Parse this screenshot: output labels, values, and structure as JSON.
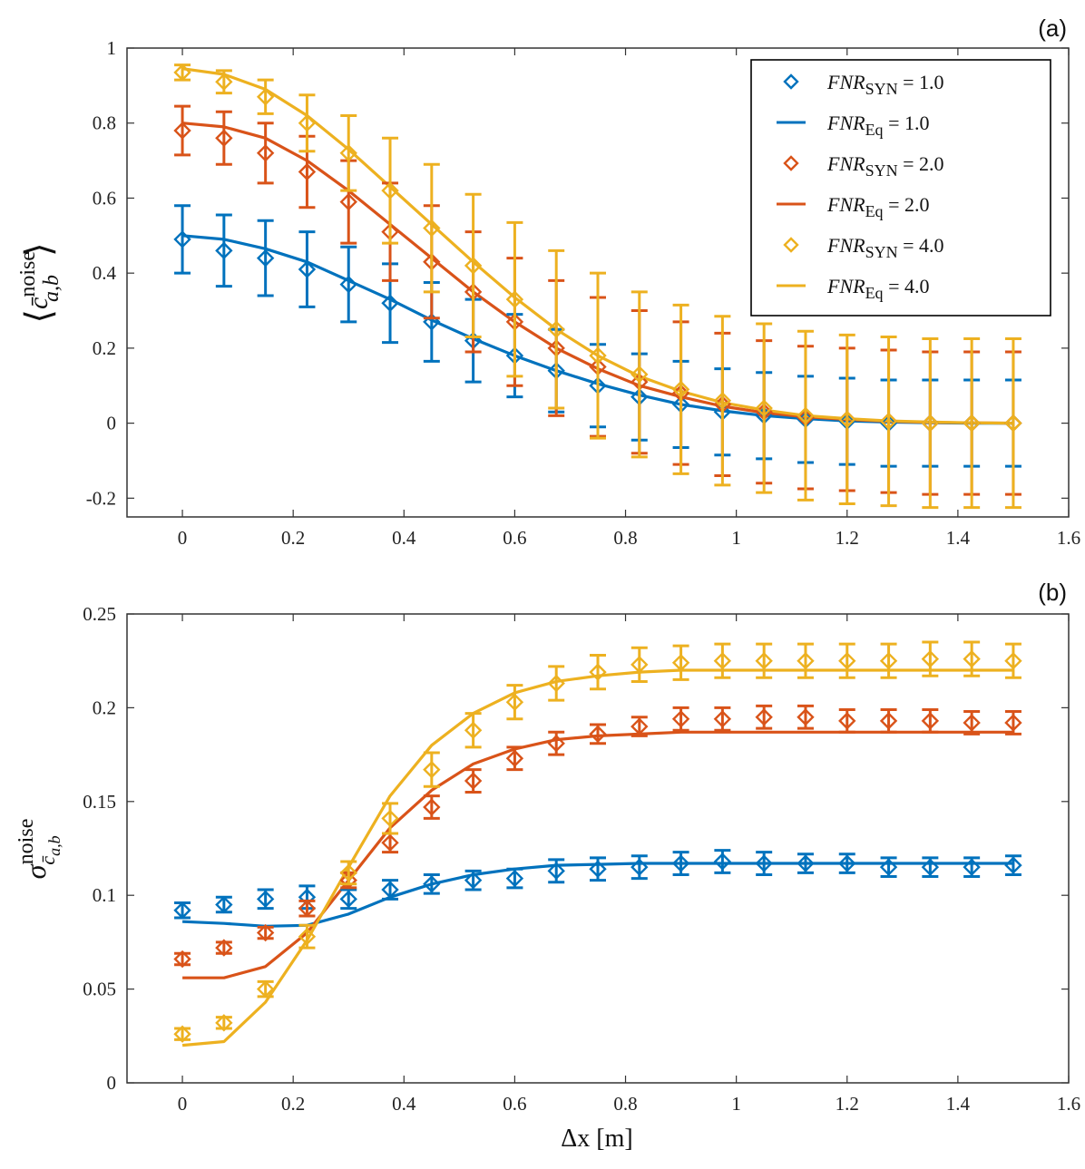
{
  "chart_data": [
    {
      "type": "line",
      "panel_label": "(a)",
      "ylabel_parts": {
        "open": "⟨",
        "var": "c̄",
        "sup": "noise",
        "sub": "a,b",
        "close": "⟩"
      },
      "xlim": [
        -0.1,
        1.6
      ],
      "ylim": [
        -0.25,
        1.0
      ],
      "xticks": [
        0,
        0.2,
        0.4,
        0.6,
        0.8,
        1.0,
        1.2,
        1.4,
        1.6
      ],
      "xtick_labels": [
        "0",
        "0.2",
        "0.4",
        "0.6",
        "0.8",
        "1",
        "1.2",
        "1.4",
        "1.6"
      ],
      "yticks": [
        -0.2,
        0,
        0.2,
        0.4,
        0.6,
        0.8,
        1.0
      ],
      "ytick_labels": [
        "-0.2",
        "0",
        "0.2",
        "0.4",
        "0.6",
        "0.8",
        "1"
      ],
      "legend_position": "top-right",
      "x": [
        0,
        0.075,
        0.15,
        0.225,
        0.3,
        0.375,
        0.45,
        0.525,
        0.6,
        0.675,
        0.75,
        0.825,
        0.9,
        0.975,
        1.05,
        1.125,
        1.2,
        1.275,
        1.35,
        1.425,
        1.5
      ],
      "series": [
        {
          "name": "FNR_SYN = 1.0",
          "legend": {
            "var": "FNR",
            "sub": "SYN",
            "rest": " = 1.0"
          },
          "kind": "markers",
          "color": "#0072BD",
          "values": [
            0.49,
            0.46,
            0.44,
            0.41,
            0.37,
            0.32,
            0.27,
            0.22,
            0.18,
            0.14,
            0.1,
            0.07,
            0.05,
            0.03,
            0.02,
            0.01,
            0.005,
            0.0,
            0.0,
            0.0,
            0.0
          ],
          "err": [
            0.09,
            0.095,
            0.1,
            0.1,
            0.1,
            0.105,
            0.105,
            0.11,
            0.11,
            0.11,
            0.11,
            0.115,
            0.115,
            0.115,
            0.115,
            0.115,
            0.115,
            0.115,
            0.115,
            0.115,
            0.115
          ]
        },
        {
          "name": "FNR_Eq = 1.0",
          "legend": {
            "var": "FNR",
            "sub": "Eq",
            "rest": " = 1.0"
          },
          "kind": "line",
          "color": "#0072BD",
          "values": [
            0.5,
            0.49,
            0.465,
            0.43,
            0.38,
            0.33,
            0.275,
            0.225,
            0.18,
            0.14,
            0.105,
            0.075,
            0.05,
            0.033,
            0.02,
            0.012,
            0.006,
            0.003,
            0.001,
            0.0,
            0.0
          ]
        },
        {
          "name": "FNR_SYN = 2.0",
          "legend": {
            "var": "FNR",
            "sub": "SYN",
            "rest": " = 2.0"
          },
          "kind": "markers",
          "color": "#D95319",
          "values": [
            0.78,
            0.76,
            0.72,
            0.67,
            0.59,
            0.51,
            0.43,
            0.35,
            0.27,
            0.2,
            0.15,
            0.11,
            0.08,
            0.05,
            0.03,
            0.015,
            0.01,
            0.005,
            0.0,
            0.0,
            0.0
          ],
          "err": [
            0.065,
            0.07,
            0.08,
            0.095,
            0.11,
            0.13,
            0.15,
            0.16,
            0.17,
            0.18,
            0.185,
            0.19,
            0.19,
            0.19,
            0.19,
            0.19,
            0.19,
            0.19,
            0.19,
            0.19,
            0.19
          ]
        },
        {
          "name": "FNR_Eq = 2.0",
          "legend": {
            "var": "FNR",
            "sub": "Eq",
            "rest": " = 2.0"
          },
          "kind": "line",
          "color": "#D95319",
          "values": [
            0.8,
            0.79,
            0.76,
            0.7,
            0.62,
            0.53,
            0.44,
            0.35,
            0.27,
            0.2,
            0.145,
            0.1,
            0.07,
            0.045,
            0.028,
            0.017,
            0.01,
            0.005,
            0.002,
            0.001,
            0.0
          ]
        },
        {
          "name": "FNR_SYN = 4.0",
          "legend": {
            "var": "FNR",
            "sub": "SYN",
            "rest": " = 4.0"
          },
          "kind": "markers",
          "color": "#EDB120",
          "values": [
            0.935,
            0.91,
            0.87,
            0.8,
            0.72,
            0.62,
            0.52,
            0.42,
            0.33,
            0.25,
            0.18,
            0.13,
            0.09,
            0.06,
            0.04,
            0.02,
            0.01,
            0.005,
            0.0,
            0.0,
            0.0
          ],
          "err": [
            0.02,
            0.03,
            0.045,
            0.075,
            0.1,
            0.14,
            0.17,
            0.19,
            0.205,
            0.21,
            0.22,
            0.22,
            0.225,
            0.225,
            0.225,
            0.225,
            0.225,
            0.225,
            0.225,
            0.225,
            0.225
          ]
        },
        {
          "name": "FNR_Eq = 4.0",
          "legend": {
            "var": "FNR",
            "sub": "Eq",
            "rest": " = 4.0"
          },
          "kind": "line",
          "color": "#EDB120",
          "values": [
            0.945,
            0.93,
            0.89,
            0.82,
            0.73,
            0.63,
            0.53,
            0.43,
            0.335,
            0.25,
            0.18,
            0.125,
            0.085,
            0.055,
            0.035,
            0.02,
            0.012,
            0.006,
            0.003,
            0.001,
            0.0
          ]
        }
      ]
    },
    {
      "type": "line",
      "panel_label": "(b)",
      "ylabel_parts": {
        "sigma": "σ",
        "sub": "c̄",
        "sub2": "a,b",
        "sup": "noise"
      },
      "xlabel": "Δx [m]",
      "xlim": [
        -0.1,
        1.6
      ],
      "ylim": [
        0,
        0.25
      ],
      "xticks": [
        0,
        0.2,
        0.4,
        0.6,
        0.8,
        1.0,
        1.2,
        1.4,
        1.6
      ],
      "xtick_labels": [
        "0",
        "0.2",
        "0.4",
        "0.6",
        "0.8",
        "1",
        "1.2",
        "1.4",
        "1.6"
      ],
      "yticks": [
        0,
        0.05,
        0.1,
        0.15,
        0.2,
        0.25
      ],
      "ytick_labels": [
        "0",
        "0.05",
        "0.1",
        "0.15",
        "0.2",
        "0.25"
      ],
      "x": [
        0,
        0.075,
        0.15,
        0.225,
        0.3,
        0.375,
        0.45,
        0.525,
        0.6,
        0.675,
        0.75,
        0.825,
        0.9,
        0.975,
        1.05,
        1.125,
        1.2,
        1.275,
        1.35,
        1.425,
        1.5
      ],
      "series": [
        {
          "name": "FNR_SYN = 1.0",
          "kind": "markers",
          "color": "#0072BD",
          "values": [
            0.092,
            0.095,
            0.098,
            0.099,
            0.098,
            0.103,
            0.106,
            0.108,
            0.109,
            0.113,
            0.114,
            0.115,
            0.117,
            0.118,
            0.117,
            0.117,
            0.117,
            0.115,
            0.115,
            0.115,
            0.116
          ],
          "err": [
            0.004,
            0.004,
            0.005,
            0.006,
            0.005,
            0.005,
            0.005,
            0.005,
            0.005,
            0.006,
            0.006,
            0.006,
            0.006,
            0.006,
            0.006,
            0.005,
            0.005,
            0.005,
            0.005,
            0.005,
            0.005
          ]
        },
        {
          "name": "FNR_Eq = 1.0",
          "kind": "line",
          "color": "#0072BD",
          "values": [
            0.086,
            0.085,
            0.0835,
            0.084,
            0.09,
            0.099,
            0.106,
            0.111,
            0.114,
            0.116,
            0.1165,
            0.117,
            0.117,
            0.117,
            0.117,
            0.117,
            0.117,
            0.117,
            0.117,
            0.117,
            0.117
          ]
        },
        {
          "name": "FNR_SYN = 2.0",
          "kind": "markers",
          "color": "#D95319",
          "values": [
            0.066,
            0.072,
            0.08,
            0.093,
            0.108,
            0.128,
            0.147,
            0.161,
            0.173,
            0.181,
            0.186,
            0.19,
            0.194,
            0.194,
            0.195,
            0.195,
            0.193,
            0.193,
            0.193,
            0.192,
            0.192
          ],
          "err": [
            0.003,
            0.003,
            0.003,
            0.004,
            0.004,
            0.005,
            0.006,
            0.006,
            0.006,
            0.006,
            0.005,
            0.005,
            0.006,
            0.006,
            0.006,
            0.006,
            0.006,
            0.006,
            0.006,
            0.006,
            0.006
          ]
        },
        {
          "name": "FNR_Eq = 2.0",
          "kind": "line",
          "color": "#D95319",
          "values": [
            0.056,
            0.056,
            0.062,
            0.08,
            0.108,
            0.136,
            0.156,
            0.17,
            0.178,
            0.183,
            0.185,
            0.186,
            0.187,
            0.187,
            0.187,
            0.187,
            0.187,
            0.187,
            0.187,
            0.187,
            0.187
          ]
        },
        {
          "name": "FNR_SYN = 4.0",
          "kind": "markers",
          "color": "#EDB120",
          "values": [
            0.026,
            0.032,
            0.05,
            0.078,
            0.112,
            0.141,
            0.167,
            0.188,
            0.203,
            0.213,
            0.219,
            0.223,
            0.224,
            0.225,
            0.225,
            0.225,
            0.225,
            0.225,
            0.226,
            0.226,
            0.225
          ],
          "err": [
            0.003,
            0.003,
            0.004,
            0.006,
            0.006,
            0.008,
            0.009,
            0.009,
            0.009,
            0.009,
            0.009,
            0.009,
            0.009,
            0.009,
            0.009,
            0.009,
            0.009,
            0.009,
            0.009,
            0.009,
            0.009
          ]
        },
        {
          "name": "FNR_Eq = 4.0",
          "kind": "line",
          "color": "#EDB120",
          "values": [
            0.02,
            0.022,
            0.043,
            0.076,
            0.115,
            0.153,
            0.18,
            0.197,
            0.208,
            0.214,
            0.217,
            0.219,
            0.22,
            0.22,
            0.22,
            0.22,
            0.22,
            0.22,
            0.22,
            0.22,
            0.22
          ]
        }
      ]
    }
  ]
}
